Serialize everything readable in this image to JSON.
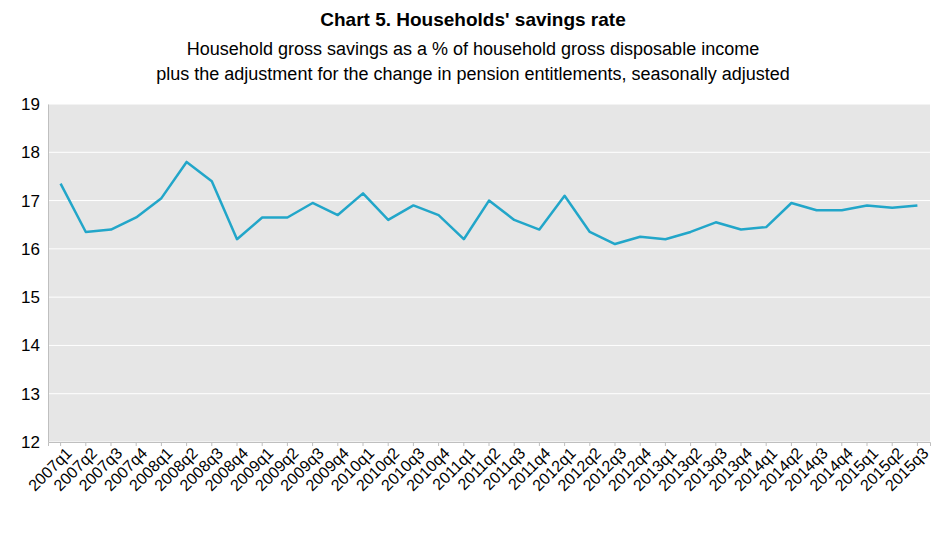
{
  "chart_data": {
    "type": "line",
    "title": "Chart 5. Households' savings rate",
    "subtitle": [
      "Household gross savings as a % of household gross disposable income",
      "plus the adjustment for the change in pension entitlements, seasonally adjusted"
    ],
    "categories": [
      "2007q1",
      "2007q2",
      "2007q3",
      "2007q4",
      "2008q1",
      "2008q2",
      "2008q3",
      "2008q4",
      "2009q1",
      "2009q2",
      "2009q3",
      "2009q4",
      "2010q1",
      "2010q2",
      "2010q3",
      "2010q4",
      "2011q1",
      "2011q2",
      "2011q3",
      "2011q4",
      "2012q1",
      "2012q2",
      "2012q3",
      "2012q4",
      "2013q1",
      "2013q2",
      "2013q3",
      "2013q4",
      "2014q1",
      "2014q2",
      "2014q3",
      "2014q4",
      "2015q1",
      "2015q2",
      "2015q3"
    ],
    "values": [
      17.35,
      16.35,
      16.4,
      16.65,
      17.05,
      17.8,
      17.4,
      16.2,
      16.65,
      16.65,
      16.95,
      16.7,
      17.15,
      16.6,
      16.9,
      16.7,
      16.2,
      17.0,
      16.6,
      16.4,
      17.1,
      16.35,
      16.1,
      16.25,
      16.2,
      16.35,
      16.55,
      16.4,
      16.45,
      16.95,
      16.8,
      16.8,
      16.9,
      16.85,
      16.9
    ],
    "color": "#22a6c9",
    "ylim": [
      12,
      19
    ],
    "yticks": [
      12,
      13,
      14,
      15,
      16,
      17,
      18,
      19
    ],
    "grid": true
  }
}
